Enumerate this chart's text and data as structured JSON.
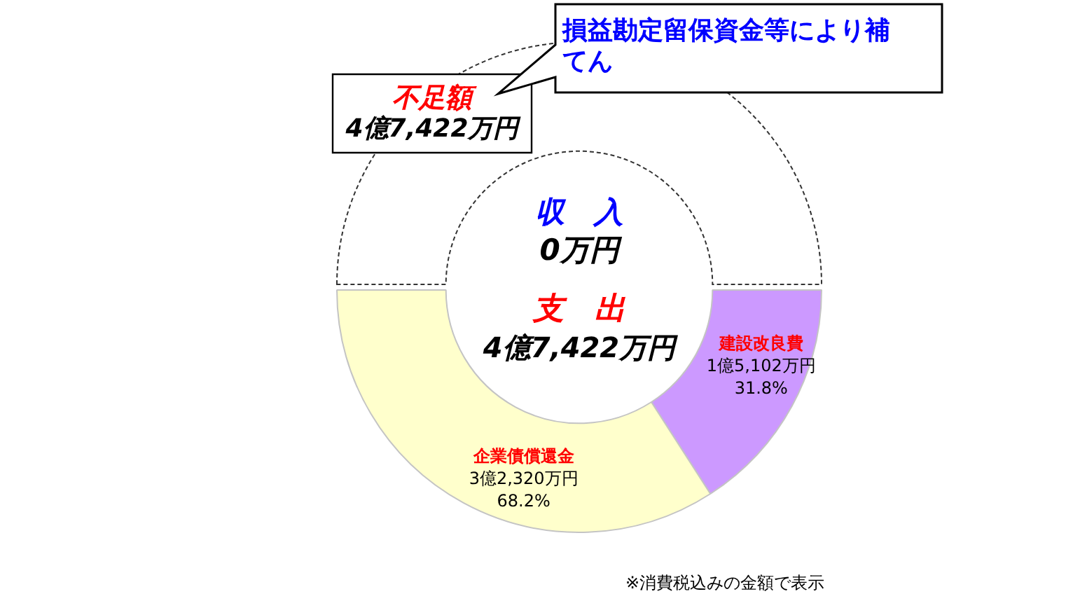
{
  "chart_data": {
    "type": "donut",
    "categories": [
      "建設改良費",
      "企業債償還金"
    ],
    "values": [
      31.8,
      68.2
    ],
    "colors": [
      "#cc99ff",
      "#ffffcc"
    ],
    "value_labels": [
      "1億5,102万円\n31.8%",
      "3億2,320万円\n68.2%"
    ],
    "annotations": [
      "損益勘定留保資金等により補てん",
      "不足額",
      "4億7,422万円",
      "収　入",
      "0万円",
      "支　出",
      "4億7,422万円",
      "※消費税込みの金額で表示"
    ]
  }
}
